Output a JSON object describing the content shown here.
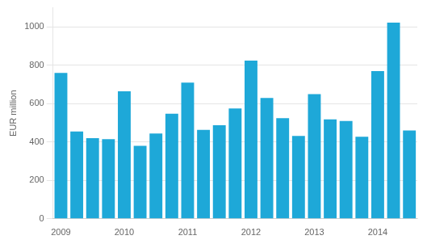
{
  "chart_data": {
    "type": "bar",
    "ylabel": "EUR million",
    "categories": [
      "2009",
      null,
      null,
      null,
      "2010",
      null,
      null,
      null,
      "2011",
      null,
      null,
      null,
      "2012",
      null,
      null,
      null,
      "2013",
      null,
      null,
      null,
      "2014",
      null,
      null
    ],
    "values": [
      760,
      455,
      420,
      415,
      665,
      380,
      445,
      548,
      710,
      463,
      488,
      575,
      825,
      630,
      525,
      432,
      650,
      518,
      510,
      428,
      770,
      1022,
      460
    ],
    "color": "#1ea8d8",
    "ylim": [
      0,
      1100
    ],
    "yticks": [
      0,
      200,
      400,
      600,
      800,
      1000
    ],
    "grid": true
  }
}
